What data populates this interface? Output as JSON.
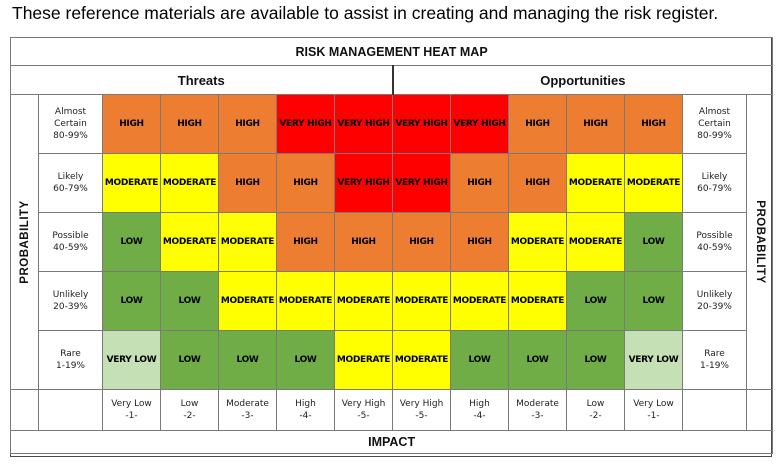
{
  "intro": "These reference materials are available to assist in creating and managing the risk register.",
  "title": "RISK MANAGEMENT HEAT MAP",
  "threats_label": "Threats",
  "opportunities_label": "Opportunities",
  "probability_label": "PROBABILITY",
  "impact_label": "IMPACT",
  "colors": {
    "very_high": "#ff0000",
    "high": "#ed7d31",
    "moderate": "#ffff00",
    "low": "#70ad47",
    "very_low": "#c5e0b4"
  },
  "rows": [
    {
      "label_lines": [
        "Almost",
        "Certain",
        "80-99%"
      ],
      "cells": [
        "HIGH",
        "HIGH",
        "HIGH",
        "VERY HIGH",
        "VERY HIGH",
        "VERY HIGH",
        "VERY HIGH",
        "HIGH",
        "HIGH",
        "HIGH"
      ]
    },
    {
      "label_lines": [
        "Likely",
        "60-79%"
      ],
      "cells": [
        "MODERATE",
        "MODERATE",
        "HIGH",
        "HIGH",
        "VERY HIGH",
        "VERY HIGH",
        "HIGH",
        "HIGH",
        "MODERATE",
        "MODERATE"
      ]
    },
    {
      "label_lines": [
        "Possible",
        "40-59%"
      ],
      "cells": [
        "LOW",
        "MODERATE",
        "MODERATE",
        "HIGH",
        "HIGH",
        "HIGH",
        "HIGH",
        "MODERATE",
        "MODERATE",
        "LOW"
      ]
    },
    {
      "label_lines": [
        "Unlikely",
        "20-39%"
      ],
      "cells": [
        "LOW",
        "LOW",
        "MODERATE",
        "MODERATE",
        "MODERATE",
        "MODERATE",
        "MODERATE",
        "MODERATE",
        "LOW",
        "LOW"
      ]
    },
    {
      "label_lines": [
        "Rare",
        "1-19%"
      ],
      "cells": [
        "VERY LOW",
        "LOW",
        "LOW",
        "LOW",
        "MODERATE",
        "MODERATE",
        "LOW",
        "LOW",
        "LOW",
        "VERY LOW"
      ]
    }
  ],
  "impact": [
    {
      "name": "Very Low",
      "code": "-1-"
    },
    {
      "name": "Low",
      "code": "-2-"
    },
    {
      "name": "Moderate",
      "code": "-3-"
    },
    {
      "name": "High",
      "code": "-4-"
    },
    {
      "name": "Very High",
      "code": "-5-"
    },
    {
      "name": "Very High",
      "code": "-5-"
    },
    {
      "name": "High",
      "code": "-4-"
    },
    {
      "name": "Moderate",
      "code": "-3-"
    },
    {
      "name": "Low",
      "code": "-2-"
    },
    {
      "name": "Very Low",
      "code": "-1-"
    }
  ]
}
